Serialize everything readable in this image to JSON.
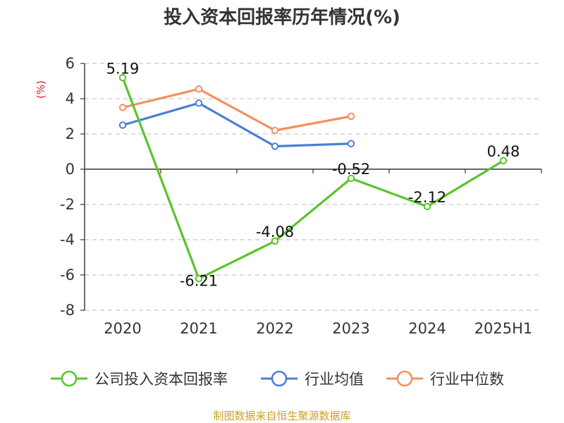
{
  "chart_data": {
    "type": "line",
    "title": "投入资本回报率历年情况(%)",
    "ylabel": "(%)",
    "xlabel": "",
    "categories": [
      "2020",
      "2021",
      "2022",
      "2023",
      "2024",
      "2025H1"
    ],
    "ylim": [
      -8,
      6
    ],
    "yticks": [
      6,
      4,
      2,
      0,
      -2,
      -4,
      -6,
      -8
    ],
    "grid": true,
    "legend_position": "bottom",
    "series": [
      {
        "name": "公司投入资本回报率",
        "color": "#5ac42a",
        "values": [
          5.19,
          -6.21,
          -4.08,
          -0.52,
          -2.12,
          0.48
        ],
        "labels": [
          "5.19",
          "-6.21",
          "-4.08",
          "-0.52",
          "-2.12",
          "0.48"
        ]
      },
      {
        "name": "行业均值",
        "color": "#4a7fd6",
        "values": [
          2.5,
          3.75,
          1.3,
          1.45,
          null,
          null
        ]
      },
      {
        "name": "行业中位数",
        "color": "#f39060",
        "values": [
          3.5,
          4.55,
          2.2,
          3.0,
          null,
          null
        ]
      }
    ],
    "source": "制图数据来自恒生聚源数据库"
  }
}
